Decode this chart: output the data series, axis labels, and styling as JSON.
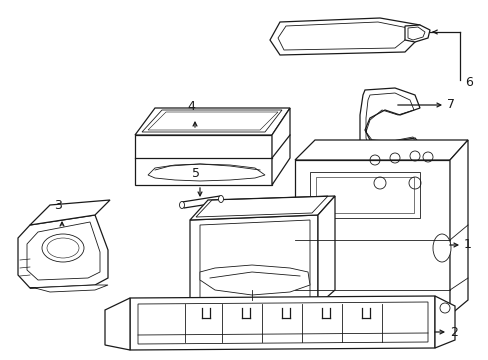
{
  "background_color": "#ffffff",
  "line_color": "#1a1a1a",
  "fig_width": 4.89,
  "fig_height": 3.6,
  "dpi": 100,
  "label_fontsize": 9,
  "lw_main": 0.9,
  "lw_detail": 0.6
}
